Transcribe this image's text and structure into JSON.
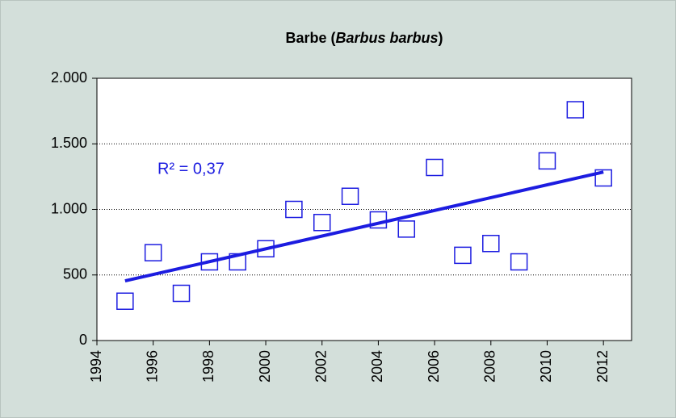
{
  "chart_data": {
    "type": "scatter",
    "title": [
      "Barbe (",
      "Barbus barbus",
      ")"
    ],
    "x": [
      1995,
      1996,
      1997,
      1998,
      1999,
      2000,
      2001,
      2002,
      2003,
      2004,
      2005,
      2006,
      2007,
      2008,
      2009,
      2010,
      2011,
      2012
    ],
    "series": [
      {
        "color": "#1c1ce0",
        "values": [
          300,
          670,
          360,
          600,
          600,
          700,
          1000,
          900,
          1100,
          920,
          850,
          1320,
          650,
          740,
          600,
          1370,
          1760,
          1240
        ]
      }
    ],
    "trendline": {
      "color": "#1c1ce0",
      "x": [
        1995,
        2012
      ],
      "values": [
        455,
        1285
      ]
    },
    "annotation": "R² = 0,37",
    "xlim": [
      1994,
      2013
    ],
    "xticks": [
      1994,
      1996,
      1998,
      2000,
      2002,
      2004,
      2006,
      2008,
      2010,
      2012
    ],
    "ylim": [
      0,
      2000
    ],
    "yticks": [
      0,
      500,
      {
        "value": 1000,
        "label": "1.000"
      },
      {
        "value": 1500,
        "label": "1.500"
      },
      {
        "value": 2000,
        "label": "2.000"
      }
    ],
    "grid": true
  }
}
